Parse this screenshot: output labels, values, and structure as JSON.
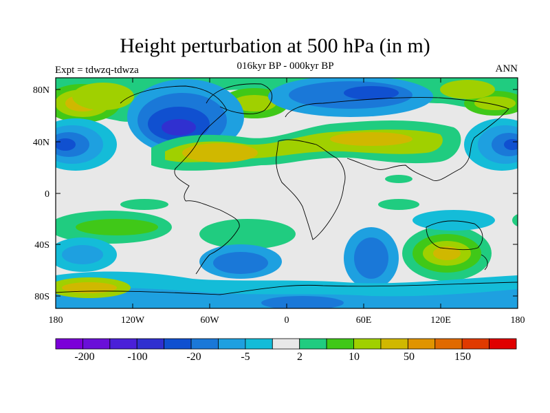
{
  "title": "Height perturbation at 500 hPa (in m)",
  "subtitle": "016kyr BP - 000kyr BP",
  "left_string": "Expt = tdwzq-tdwza",
  "right_string": "ANN",
  "lat_labels": [
    "80N",
    "40N",
    "0",
    "40S",
    "80S"
  ],
  "lon_labels": [
    "180",
    "120W",
    "60W",
    "0",
    "60E",
    "120E",
    "180"
  ],
  "colorbar": {
    "colors": [
      "#7b00d8",
      "#6a10d8",
      "#4a20d8",
      "#3030d0",
      "#1050d0",
      "#1a78d8",
      "#1ea0e0",
      "#14bcd8",
      "#e8e8e8",
      "#20cc80",
      "#40c818",
      "#a0d000",
      "#d0b800",
      "#e09400",
      "#e06a00",
      "#e03a00",
      "#e00000"
    ],
    "labels": [
      "-200",
      "-100",
      "-20",
      "-5",
      "2",
      "10",
      "50",
      "150"
    ]
  }
}
